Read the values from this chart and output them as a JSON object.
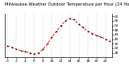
{
  "title": "Milwaukee Weather Outdoor Temperature per Hour (24 Hours)",
  "hours": [
    0,
    1,
    2,
    3,
    4,
    5,
    6,
    7,
    8,
    9,
    10,
    11,
    12,
    13,
    14,
    15,
    16,
    17,
    18,
    19,
    20,
    21,
    22,
    23
  ],
  "temps": [
    34,
    33,
    31,
    30,
    29,
    28,
    27,
    28,
    31,
    36,
    42,
    47,
    52,
    56,
    58,
    57,
    53,
    50,
    47,
    45,
    43,
    42,
    40,
    38
  ],
  "line_color": "#dd0000",
  "marker_color": "#000000",
  "bg_color": "#ffffff",
  "grid_color": "#bbbbbb",
  "ylim": [
    24,
    62
  ],
  "ytick_vals": [
    28,
    32,
    36,
    40,
    44,
    48,
    52,
    56,
    60
  ],
  "ytick_labels": [
    "28",
    "32",
    "36",
    "40",
    "44",
    "48",
    "52",
    "56",
    "60"
  ],
  "xtick_vals": [
    0,
    2,
    4,
    6,
    8,
    10,
    12,
    14,
    16,
    18,
    20,
    22
  ],
  "xtick_labels": [
    "0",
    "2",
    "4",
    "6",
    "8",
    "10",
    "12",
    "14",
    "16",
    "18",
    "20",
    "22"
  ],
  "title_fontsize": 3.8,
  "tick_fontsize": 3.2,
  "line_width": 0.7,
  "marker_size": 1.8
}
